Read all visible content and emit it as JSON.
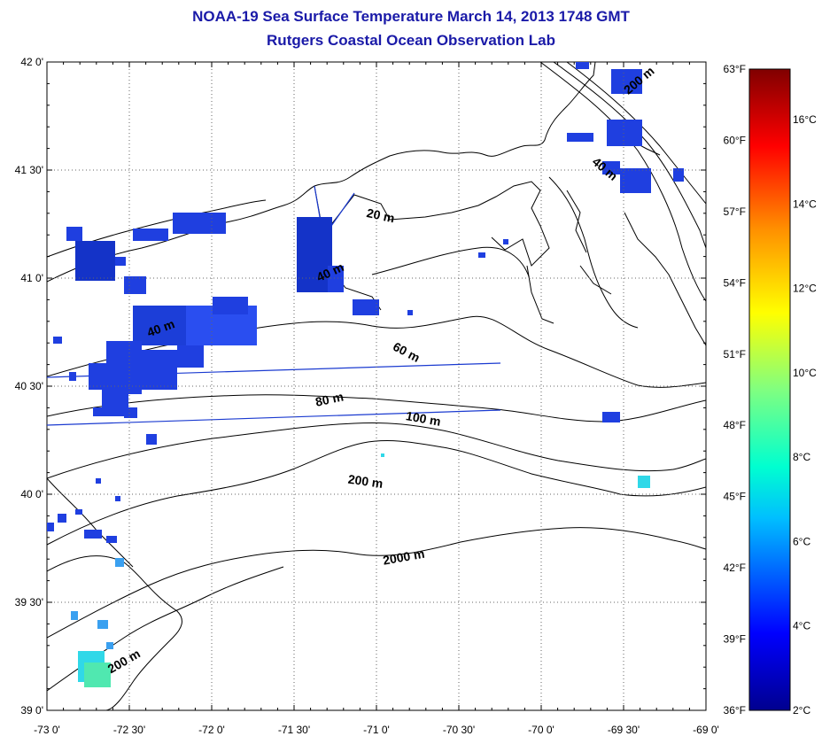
{
  "header": {
    "title": "NOAA-19 Sea Surface Temperature March 14, 2013 1748 GMT",
    "subtitle": "Rutgers Coastal Ocean Observation Lab"
  },
  "map": {
    "lon_range": [
      -73.0,
      -69.0
    ],
    "lat_range": [
      39.0,
      42.0
    ],
    "lon_ticks": [
      "-73 0'",
      "-72 30'",
      "-72 0'",
      "-71 30'",
      "-71 0'",
      "-70 30'",
      "-70 0'",
      "-69 30'",
      "-69 0'"
    ],
    "lat_ticks": [
      "42 0'",
      "41 30'",
      "41 0'",
      "40 30'",
      "40 0'",
      "39 30'",
      "39 0'"
    ],
    "grid": true,
    "contour_labels": [
      {
        "text": "20 m",
        "lon": -70.98,
        "lat": 41.27,
        "rot": 12
      },
      {
        "text": "40 m",
        "lon": -71.27,
        "lat": 41.01,
        "rot": -25
      },
      {
        "text": "60 m",
        "lon": -70.83,
        "lat": 40.64,
        "rot": 28
      },
      {
        "text": "80 m",
        "lon": -71.28,
        "lat": 40.42,
        "rot": -12
      },
      {
        "text": "100 m",
        "lon": -70.72,
        "lat": 40.33,
        "rot": 10
      },
      {
        "text": "200 m",
        "lon": -71.07,
        "lat": 40.04,
        "rot": 8
      },
      {
        "text": "2000 m",
        "lon": -70.83,
        "lat": 39.69,
        "rot": -10
      },
      {
        "text": "200 m",
        "lon": -72.52,
        "lat": 39.21,
        "rot": -30
      },
      {
        "text": "40 m",
        "lon": -72.3,
        "lat": 40.75,
        "rot": -20
      },
      {
        "text": "40 m",
        "lon": -69.63,
        "lat": 41.49,
        "rot": 40
      },
      {
        "text": "200 m",
        "lon": -69.39,
        "lat": 41.9,
        "rot": -40
      }
    ]
  },
  "colorbar": {
    "f_labels": [
      "63°F",
      "60°F",
      "57°F",
      "54°F",
      "51°F",
      "48°F",
      "45°F",
      "42°F",
      "39°F",
      "36°F"
    ],
    "c_labels": [
      "16°C",
      "14°C",
      "12°C",
      "10°C",
      "8°C",
      "6°C",
      "4°C",
      "2°C"
    ],
    "c_range": [
      2,
      17.2
    ]
  }
}
